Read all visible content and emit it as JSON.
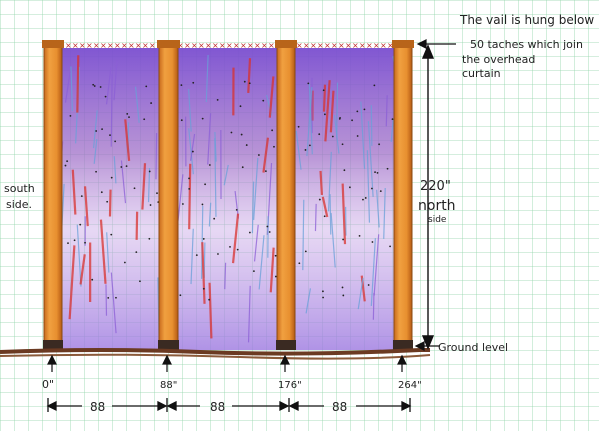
{
  "note": {
    "line1": "The vail is hung below",
    "line2": "50 taches which join",
    "line3": "the overhead",
    "line4": "curtain"
  },
  "labels": {
    "south": "south",
    "south2": "side.",
    "height": "220\"",
    "north": "north",
    "north2": "side",
    "ground": "Ground level"
  },
  "positions": [
    "0\"",
    "88\"",
    "176\"",
    "264\""
  ],
  "spans": [
    "88",
    "88",
    "88"
  ],
  "colors": {
    "grid": "#7fc99a",
    "post": "#e0902a",
    "post_dark": "#b8641a",
    "curtain_purple": "#8b5fd6",
    "curtain_red": "#d8322e",
    "curtain_blue": "#6aa0d8",
    "ground": "#6b3a22",
    "taches": "#c03030"
  }
}
